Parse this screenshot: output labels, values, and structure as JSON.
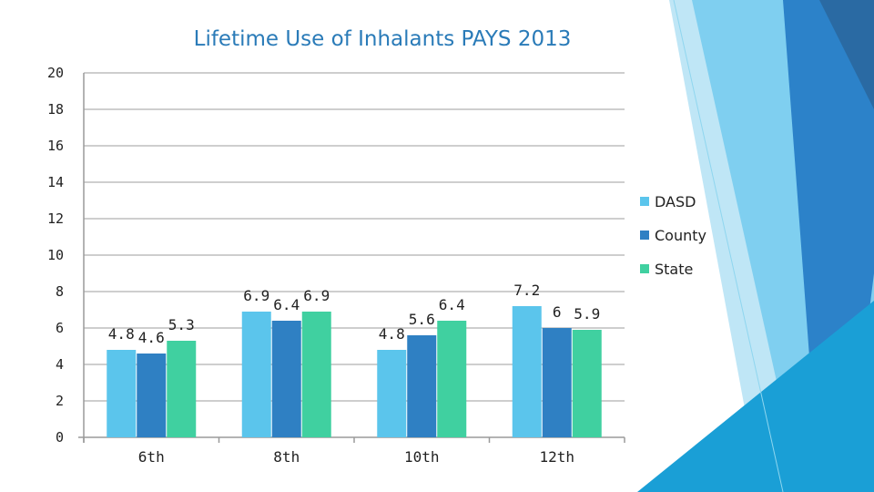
{
  "chart_data": {
    "type": "bar",
    "title": "Lifetime Use of Inhalants PAYS 2013",
    "categories": [
      "6th",
      "8th",
      "10th",
      "12th"
    ],
    "series": [
      {
        "name": "DASD",
        "values": [
          4.8,
          6.9,
          4.8,
          7.2
        ],
        "color": "#5bc5ec"
      },
      {
        "name": "County",
        "values": [
          4.6,
          6.4,
          5.6,
          6
        ],
        "color": "#2f80c3"
      },
      {
        "name": "State",
        "values": [
          5.3,
          6.9,
          6.4,
          5.9
        ],
        "color": "#40d0a0"
      }
    ],
    "ylim": [
      0,
      20
    ],
    "yticks": [
      0,
      2,
      4,
      6,
      8,
      10,
      12,
      14,
      16,
      18,
      20
    ],
    "grid": true,
    "legend": "right"
  }
}
